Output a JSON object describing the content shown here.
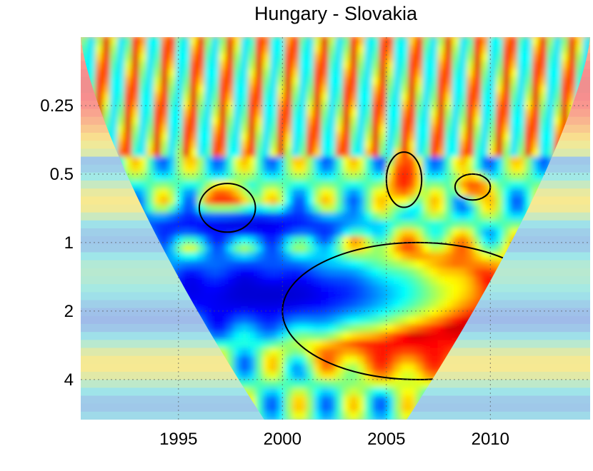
{
  "chart_data": {
    "type": "heatmap",
    "title": "Hungary - Slovakia",
    "xlabel": "",
    "ylabel": "",
    "x_range": [
      1990.3,
      2014.8
    ],
    "x_ticks": [
      1995,
      2000,
      2005,
      2010
    ],
    "x_tick_labels": [
      "1995",
      "2000",
      "2005",
      "2010"
    ],
    "y_range": [
      0.125,
      6
    ],
    "y_scale": "log2",
    "y_reversed": true,
    "y_ticks": [
      0.25,
      0.5,
      1,
      2,
      4
    ],
    "y_tick_labels": [
      "0.25",
      "0.5",
      "1",
      "2",
      "4"
    ],
    "grid": true,
    "colormap": "jet",
    "cone_of_influence": true,
    "significance_contours": true,
    "regions": [
      {
        "name": "large-high-coherence",
        "x": [
          2000,
          2013
        ],
        "y": [
          1,
          4
        ],
        "level": 0.95
      },
      {
        "name": "mid-high-1997",
        "x": [
          1996,
          1998.7
        ],
        "y": [
          0.55,
          0.9
        ],
        "level": 0.85
      },
      {
        "name": "mid-high-2006",
        "x": [
          2005,
          2006.7
        ],
        "y": [
          0.4,
          0.7
        ],
        "level": 0.85
      },
      {
        "name": "mid-high-2009",
        "x": [
          2008.3,
          2010
        ],
        "y": [
          0.5,
          0.65
        ],
        "level": 0.8
      },
      {
        "name": "edge-high-2014",
        "x": [
          2013.3,
          2014.8
        ],
        "y": [
          0.3,
          0.7
        ],
        "level": 0.85
      },
      {
        "name": "edge-high-1992",
        "x": [
          1991.5,
          1993
        ],
        "y": [
          0.9,
          1.6
        ],
        "level": 0.75
      },
      {
        "name": "low-band-1",
        "x": [
          1991,
          2008
        ],
        "y": [
          1.1,
          2.6
        ],
        "level": 0.08
      },
      {
        "name": "low-band-2",
        "x": [
          1992,
          2004
        ],
        "y": [
          0.7,
          1
        ],
        "level": 0.1
      }
    ]
  }
}
